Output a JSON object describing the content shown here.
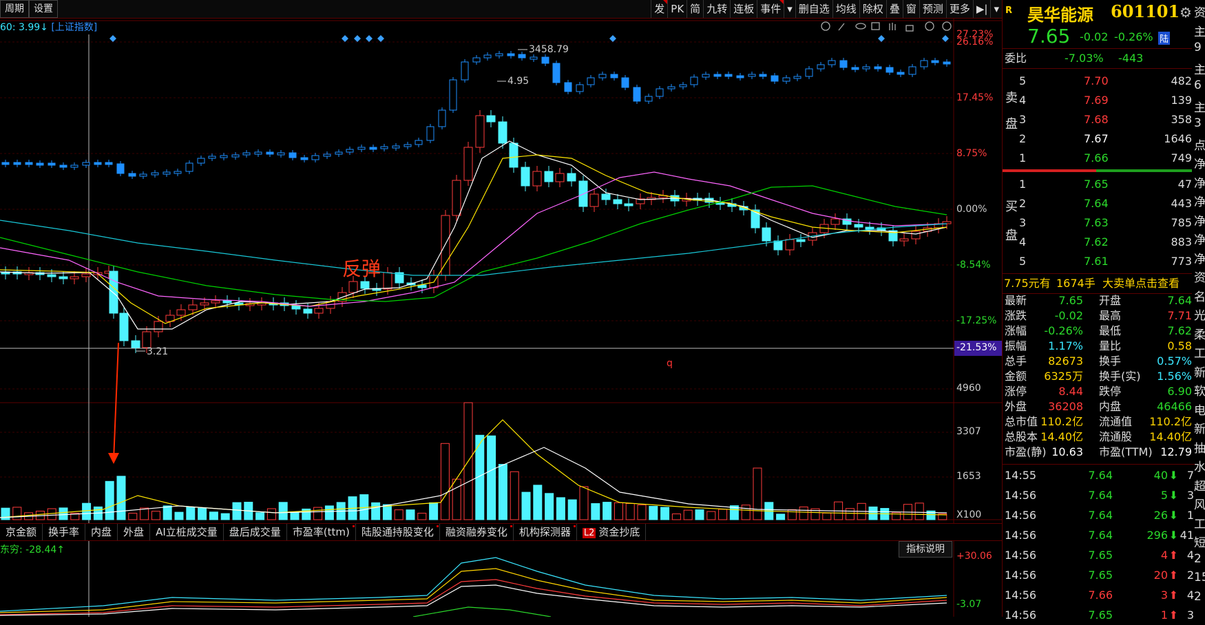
{
  "topbar": {
    "left_tabs": [
      "周期",
      "设置"
    ],
    "toolbar": [
      "发",
      "PK",
      "简",
      "九转",
      "连板",
      "事件",
      "▾",
      "删自选",
      "均线",
      "除权",
      "叠",
      "窗",
      "预测",
      "更多",
      "▶|",
      "▾"
    ]
  },
  "info_line": {
    "ma_label": "60: 3.99↓",
    "index_link": "[上证指数]"
  },
  "price_axis": [
    "27.23%",
    "26.16%",
    "17.45%",
    "8.75%",
    "0.00%",
    "-8.54%",
    "-17.25%",
    "-21.53%"
  ],
  "volume_axis": [
    "4960",
    "3307",
    "1653",
    "X100"
  ],
  "indicator_axis": [
    "+30.06",
    "-3.07"
  ],
  "annotations": {
    "high_label": "3458.79",
    "peak_label": "4.95",
    "low_label": "3.21",
    "rebound_text": "反弹",
    "q_mark": "q"
  },
  "bottom_tabs": [
    "京金额",
    "换手率",
    "内盘",
    "外盘",
    "AI立桩成交量",
    "盘后成交量",
    "市盈率(ttm)",
    "陆股通持股变化",
    "融资融券变化",
    "机构探测器",
    "资金抄底"
  ],
  "l2_badge": "L2",
  "indicator": {
    "name": "东穷: -28.44↑",
    "help_button": "指标说明"
  },
  "stock": {
    "flag": "R",
    "name": "昊华能源",
    "code": "601101",
    "price": "7.65",
    "change": "-0.02",
    "change_pct": "-0.26%",
    "badge": "陆",
    "weibi_label": "委比",
    "weibi": "-7.03%",
    "weicha": "-443"
  },
  "sell_label": [
    "卖",
    "盘"
  ],
  "buy_label": [
    "买",
    "盘"
  ],
  "asks": [
    {
      "lvl": "5",
      "price": "7.70",
      "vol": "482"
    },
    {
      "lvl": "4",
      "price": "7.69",
      "vol": "139"
    },
    {
      "lvl": "3",
      "price": "7.68",
      "vol": "358"
    },
    {
      "lvl": "2",
      "price": "7.67",
      "vol": "1646"
    },
    {
      "lvl": "1",
      "price": "7.66",
      "vol": "749"
    }
  ],
  "bids": [
    {
      "lvl": "1",
      "price": "7.65",
      "vol": "47"
    },
    {
      "lvl": "2",
      "price": "7.64",
      "vol": "443"
    },
    {
      "lvl": "3",
      "price": "7.63",
      "vol": "785"
    },
    {
      "lvl": "4",
      "price": "7.62",
      "vol": "883"
    },
    {
      "lvl": "5",
      "price": "7.61",
      "vol": "773"
    }
  ],
  "big_order": {
    "price": "7.75元有",
    "vol": "1674手",
    "text": "大卖单点击查看"
  },
  "quote": [
    [
      "最新",
      "7.65",
      "开盘",
      "7.64"
    ],
    [
      "涨跌",
      "-0.02",
      "最高",
      "7.71"
    ],
    [
      "涨幅",
      "-0.26%",
      "最低",
      "7.62"
    ],
    [
      "振幅",
      "1.17%",
      "量比",
      "0.58"
    ],
    [
      "总手",
      "82673",
      "换手",
      "0.57%"
    ],
    [
      "金额",
      "6325万",
      "换手(实)",
      "1.56%"
    ],
    [
      "涨停",
      "8.44",
      "跌停",
      "6.90"
    ],
    [
      "外盘",
      "36208",
      "内盘",
      "46466"
    ],
    [
      "总市值",
      "110.2亿",
      "流通值",
      "110.2亿"
    ],
    [
      "总股本",
      "14.40亿",
      "流通股",
      "14.40亿"
    ],
    [
      "市盈(静)",
      "10.63",
      "市盈(TTM)",
      "12.79"
    ]
  ],
  "ticks": [
    {
      "time": "14:55",
      "price": "7.64",
      "vol": "40",
      "dir": "down",
      "extra": "7"
    },
    {
      "time": "14:56",
      "price": "7.64",
      "vol": "5",
      "dir": "down",
      "extra": "3"
    },
    {
      "time": "14:56",
      "price": "7.64",
      "vol": "26",
      "dir": "down",
      "extra": "1"
    },
    {
      "time": "14:56",
      "price": "7.64",
      "vol": "296",
      "dir": "down",
      "extra": "41"
    },
    {
      "time": "14:56",
      "price": "7.65",
      "vol": "4",
      "dir": "up",
      "extra": "4"
    },
    {
      "time": "14:56",
      "price": "7.65",
      "vol": "20",
      "dir": "up",
      "extra": "2"
    },
    {
      "time": "14:56",
      "price": "7.66",
      "vol": "3",
      "dir": "up",
      "extra": "4"
    },
    {
      "time": "14:56",
      "price": "7.65",
      "vol": "1",
      "dir": "up",
      "extra": "3"
    }
  ],
  "edge_chars": [
    "资",
    "主",
    "9",
    "主",
    "6",
    "主",
    "3",
    "点",
    "净",
    "净",
    "净",
    "净",
    "净",
    "净",
    "资",
    "名",
    "光",
    "柔",
    "工",
    "新",
    "软",
    "电",
    "新",
    "抽",
    "水",
    "超",
    "风",
    "工",
    "短",
    "2",
    "15",
    "2"
  ],
  "colors": {
    "up": "#ff3b3b",
    "down": "#4ff3ff",
    "index": "#1e8fff",
    "ma5": "#ffffff",
    "ma10": "#ffe600",
    "ma20": "#ff66ff",
    "ma30": "#00d200",
    "ma60": "#18c8d8"
  }
}
